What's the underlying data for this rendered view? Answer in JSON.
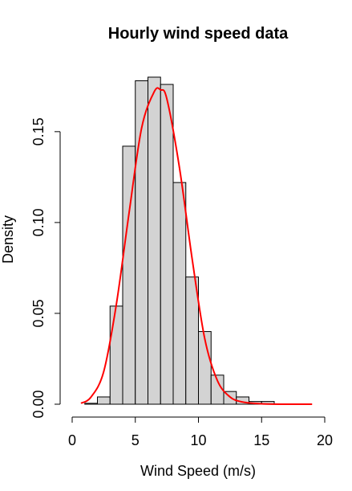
{
  "chart_data": {
    "type": "bar",
    "title": "Hourly wind speed data",
    "xlabel": "Wind Speed (m/s)",
    "ylabel": "Density",
    "xlim": [
      0,
      20
    ],
    "ylim": [
      0,
      0.18
    ],
    "x_ticks": [
      "0",
      "5",
      "10",
      "15",
      "20"
    ],
    "y_ticks": [
      "0.00",
      "0.05",
      "0.10",
      "0.15"
    ],
    "bar_color": "#d3d3d3",
    "curve_color": "#ff0000",
    "histogram": {
      "bin_width": 1,
      "bins": [
        {
          "x0": 1,
          "x1": 2,
          "density": 0.0005
        },
        {
          "x0": 2,
          "x1": 3,
          "density": 0.004
        },
        {
          "x0": 3,
          "x1": 4,
          "density": 0.054
        },
        {
          "x0": 4,
          "x1": 5,
          "density": 0.142
        },
        {
          "x0": 5,
          "x1": 6,
          "density": 0.178
        },
        {
          "x0": 6,
          "x1": 7,
          "density": 0.18
        },
        {
          "x0": 7,
          "x1": 8,
          "density": 0.176
        },
        {
          "x0": 8,
          "x1": 9,
          "density": 0.122
        },
        {
          "x0": 9,
          "x1": 10,
          "density": 0.07
        },
        {
          "x0": 10,
          "x1": 11,
          "density": 0.04
        },
        {
          "x0": 11,
          "x1": 12,
          "density": 0.016
        },
        {
          "x0": 12,
          "x1": 13,
          "density": 0.007
        },
        {
          "x0": 13,
          "x1": 14,
          "density": 0.004
        },
        {
          "x0": 14,
          "x1": 15,
          "density": 0.0015
        },
        {
          "x0": 15,
          "x1": 16,
          "density": 0.0015
        },
        {
          "x0": 16,
          "x1": 17,
          "density": 0.0002
        },
        {
          "x0": 17,
          "x1": 18,
          "density": 0.0002
        }
      ]
    },
    "curve": {
      "type": "line",
      "x": [
        0.7,
        1.5,
        2.5,
        3.5,
        4.5,
        5.5,
        6.5,
        7.0,
        7.5,
        8.5,
        9.5,
        10.5,
        11.5,
        12.5,
        13.5,
        15,
        17,
        19
      ],
      "y": [
        0.0005,
        0.004,
        0.018,
        0.055,
        0.105,
        0.152,
        0.172,
        0.173,
        0.168,
        0.13,
        0.08,
        0.036,
        0.013,
        0.004,
        0.0012,
        0.0002,
        0.0,
        0.0
      ]
    }
  }
}
